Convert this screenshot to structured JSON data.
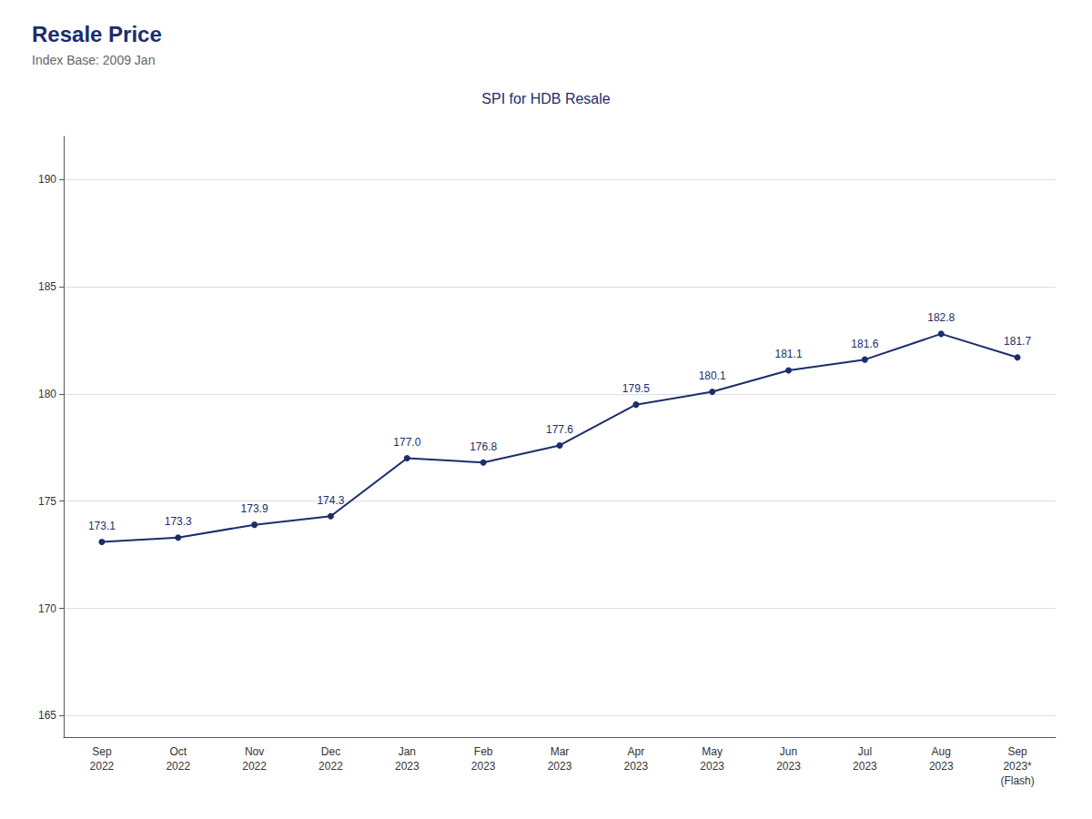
{
  "chart_data": {
    "type": "line",
    "title": "Resale Price",
    "subtitle": "Index Base: 2009 Jan",
    "annotations": [
      "SPI for HDB Resale"
    ],
    "categories": [
      "Sep\n2022",
      "Oct\n2022",
      "Nov\n2022",
      "Dec\n2022",
      "Jan\n2023",
      "Feb\n2023",
      "Mar\n2023",
      "Apr\n2023",
      "May\n2023",
      "Jun\n2023",
      "Jul\n2023",
      "Aug\n2023",
      "Sep\n2023*\n(Flash)"
    ],
    "values": [
      173.1,
      173.3,
      173.9,
      174.3,
      177.0,
      176.8,
      177.6,
      179.5,
      180.1,
      181.1,
      181.6,
      182.8,
      181.7
    ],
    "value_labels": [
      "173.1",
      "173.3",
      "173.9",
      "174.3",
      "177.0",
      "176.8",
      "177.6",
      "179.5",
      "180.1",
      "181.1",
      "181.6",
      "182.8",
      "181.7"
    ],
    "color": "#1b2d6b",
    "marker": "circle",
    "ylim": [
      164,
      192
    ],
    "yticks": [
      165,
      170,
      175,
      180,
      185,
      190
    ],
    "grid": true,
    "data_labels": true
  }
}
